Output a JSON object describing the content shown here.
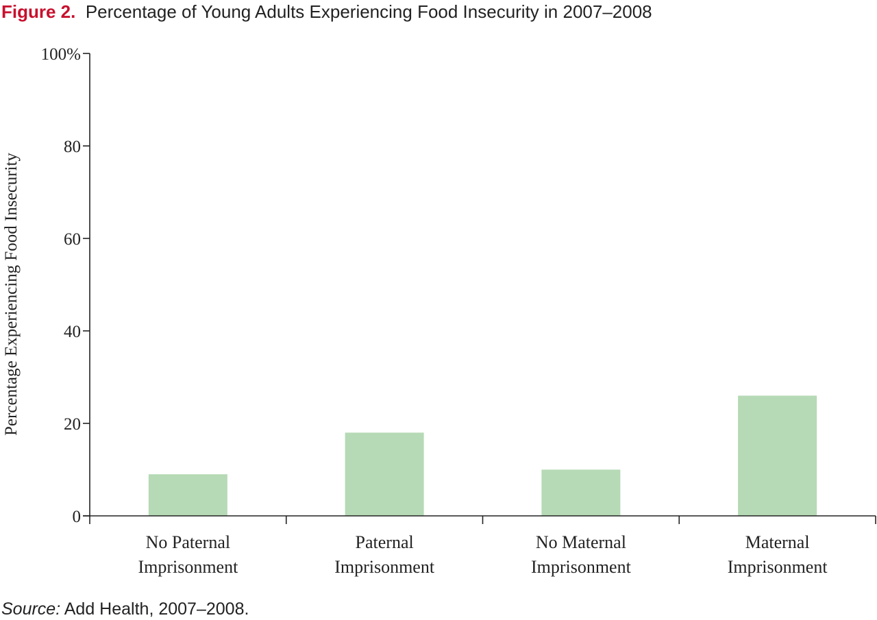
{
  "figure": {
    "label": "Figure 2.",
    "title": "Percentage of Young Adults Experiencing Food Insecurity in 2007–2008"
  },
  "source": {
    "label": "Source:",
    "text": "Add Health, 2007–2008."
  },
  "chart_data": {
    "type": "bar",
    "title": "Percentage of Young Adults Experiencing Food Insecurity in 2007–2008",
    "ylabel": "Percentage Experiencing Food Insecurity",
    "xlabel": "",
    "ylim": [
      0,
      100
    ],
    "yticks": [
      0,
      20,
      40,
      60,
      80,
      100
    ],
    "ytick_labels": [
      "0",
      "20",
      "40",
      "60",
      "80",
      "100%"
    ],
    "categories": [
      [
        "No Paternal",
        "Imprisonment"
      ],
      [
        "Paternal",
        "Imprisonment"
      ],
      [
        "No Maternal",
        "Imprisonment"
      ],
      [
        "Maternal",
        "Imprisonment"
      ]
    ],
    "values": [
      9,
      18,
      10,
      26
    ],
    "bar_color": "#b5dab5",
    "grid": false,
    "legend": "none"
  }
}
